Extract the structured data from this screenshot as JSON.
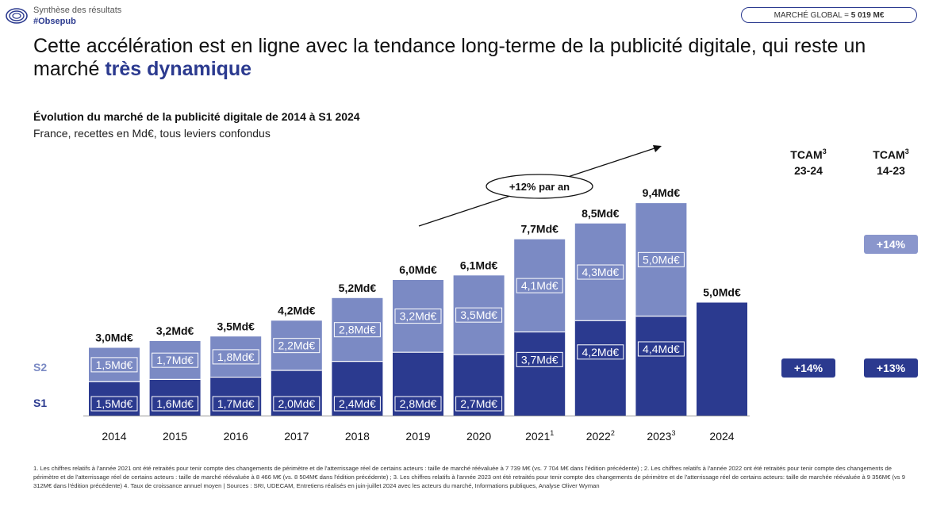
{
  "header": {
    "report_title": "Synthèse des résultats",
    "hashtag": "#Obsepub",
    "market_label": "MARCHÉ GLOBAL = ",
    "market_value": "5 019 M€"
  },
  "headline": {
    "part1": "Cette accélération est en ligne avec la tendance long-terme de la publicité digitale, qui reste un marché ",
    "emphasis": "très dynamique"
  },
  "chart_data": {
    "type": "bar",
    "title": "Évolution du marché de la publicité digitale de 2014 à S1 2024",
    "subtitle": "France, recettes en Md€, tous leviers confondus",
    "categories": [
      "2014",
      "2015",
      "2016",
      "2017",
      "2018",
      "2019",
      "2020",
      "2021",
      "2022",
      "2023",
      "2024"
    ],
    "category_superscripts": [
      "",
      "",
      "",
      "",
      "",
      "",
      "",
      "1",
      "2",
      "3",
      ""
    ],
    "stacked": true,
    "series": [
      {
        "name": "S1",
        "values": [
          1.5,
          1.6,
          1.7,
          2.0,
          2.4,
          2.8,
          2.7,
          3.7,
          4.2,
          4.4,
          5.0
        ],
        "color": "#2b3a8f"
      },
      {
        "name": "S2",
        "values": [
          1.5,
          1.7,
          1.8,
          2.2,
          2.8,
          3.2,
          3.5,
          4.1,
          4.3,
          5.0,
          null
        ],
        "color": "#7b8ac4"
      }
    ],
    "segment_labels_s1": [
      "1,5Md€",
      "1,6Md€",
      "1,7Md€",
      "2,0Md€",
      "2,4Md€",
      "2,8Md€",
      "2,7Md€",
      "3,7Md€",
      "4,2Md€",
      "4,4Md€",
      ""
    ],
    "segment_labels_s2": [
      "1,5Md€",
      "1,7Md€",
      "1,8Md€",
      "2,2Md€",
      "2,8Md€",
      "3,2Md€",
      "3,5Md€",
      "4,1Md€",
      "4,3Md€",
      "5,0Md€",
      ""
    ],
    "total_labels": [
      "3,0Md€",
      "3,2Md€",
      "3,5Md€",
      "4,2Md€",
      "5,2Md€",
      "6,0Md€",
      "6,1Md€",
      "7,7Md€",
      "8,5Md€",
      "9,4Md€",
      "5,0Md€"
    ],
    "trend_annotation": "+12% par an",
    "ylim": [
      0,
      10
    ]
  },
  "tcam": {
    "col1_title": "TCAM",
    "col1_sup": "3",
    "col1_period": "23-24",
    "col2_title": "TCAM",
    "col2_sup": "3",
    "col2_period": "14-23",
    "s2_col2": "+14%",
    "s1_col1": "+14%",
    "s1_col2": "+13%"
  },
  "footnote": "1. Les chiffres relatifs à l'année 2021 ont été retraités pour tenir compte des changements de périmètre et de l'atterrissage réel de certains acteurs : taille de marché réévaluée à 7 739 M€ (vs. 7 704 M€ dans l'édition précédente) ; 2. Les chiffres relatifs à l'année 2022 ont été retraités pour tenir compte des changements de périmètre et de l'atterrissage réel de certains acteurs : taille de marché réévaluée à 8 466 M€ (vs. 8 504M€ dans l'édition précédente) ; 3. Les chiffres relatifs à l'année 2023 ont été retraités pour tenir compte des changements de périmètre et de l'atterrissage réel de certains acteurs: taille de marchée réévaluée à 9 356M€ (vs 9 312M€ dans l'édition précédente) 4. Taux de croissance annuel moyen | Sources : SRI, UDECAM, Entretiens réalisés en juin-juillet 2024 avec les acteurs du marché, Informations publiques, Analyse Oliver Wyman"
}
